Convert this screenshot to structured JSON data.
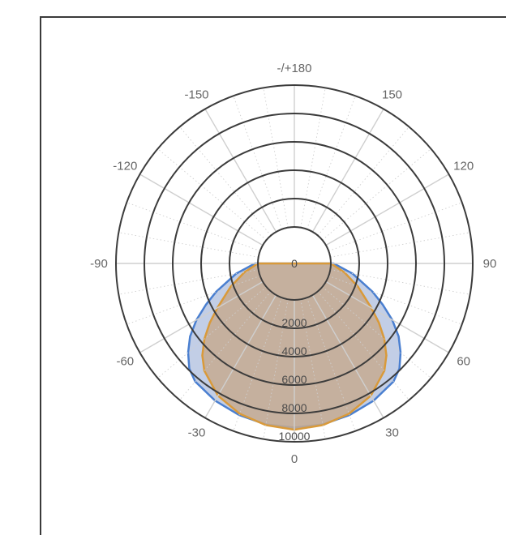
{
  "chart_data": {
    "type": "polar",
    "title": "",
    "angle_labels": [
      "0",
      "30",
      "60",
      "90",
      "120",
      "150",
      "-/+180",
      "-150",
      "-120",
      "-90",
      "-60",
      "-30"
    ],
    "angle_values": [
      0,
      30,
      60,
      90,
      120,
      150,
      180,
      -150,
      -120,
      -90,
      -60,
      -30
    ],
    "radial_labels": [
      "0",
      "2000",
      "4000",
      "6000",
      "8000",
      "10000"
    ],
    "radial_values": [
      0,
      2000,
      4000,
      6000,
      8000,
      10000
    ],
    "rmax": 10000,
    "grid": true,
    "series": [
      {
        "color": "#4a7fd0",
        "fill": "#b7c6e2",
        "theta": [
          0,
          10,
          20,
          30,
          40,
          45,
          50,
          55,
          60,
          65,
          70,
          80,
          90,
          -10,
          -20,
          -30,
          -40,
          -45,
          -50,
          -55,
          -60,
          -65,
          -70,
          -80,
          -90
        ],
        "r": [
          9000,
          8950,
          8800,
          8600,
          8300,
          7900,
          7200,
          6400,
          5400,
          4300,
          3300,
          1600,
          200,
          8950,
          8800,
          8600,
          8300,
          7900,
          7200,
          6400,
          5400,
          4300,
          3300,
          1600,
          200
        ]
      },
      {
        "color": "#d99a3a",
        "fill": "#c6aa90",
        "theta": [
          0,
          10,
          20,
          30,
          40,
          45,
          50,
          55,
          60,
          70,
          80,
          90,
          -10,
          -20,
          -30,
          -40,
          -45,
          -50,
          -55,
          -60,
          -70,
          -80,
          -90
        ],
        "r": [
          9150,
          9000,
          8700,
          8200,
          7300,
          6600,
          5700,
          4700,
          3700,
          2200,
          1000,
          0,
          9000,
          8700,
          8200,
          7300,
          6600,
          5700,
          4700,
          3700,
          2200,
          1000,
          0
        ]
      }
    ]
  }
}
